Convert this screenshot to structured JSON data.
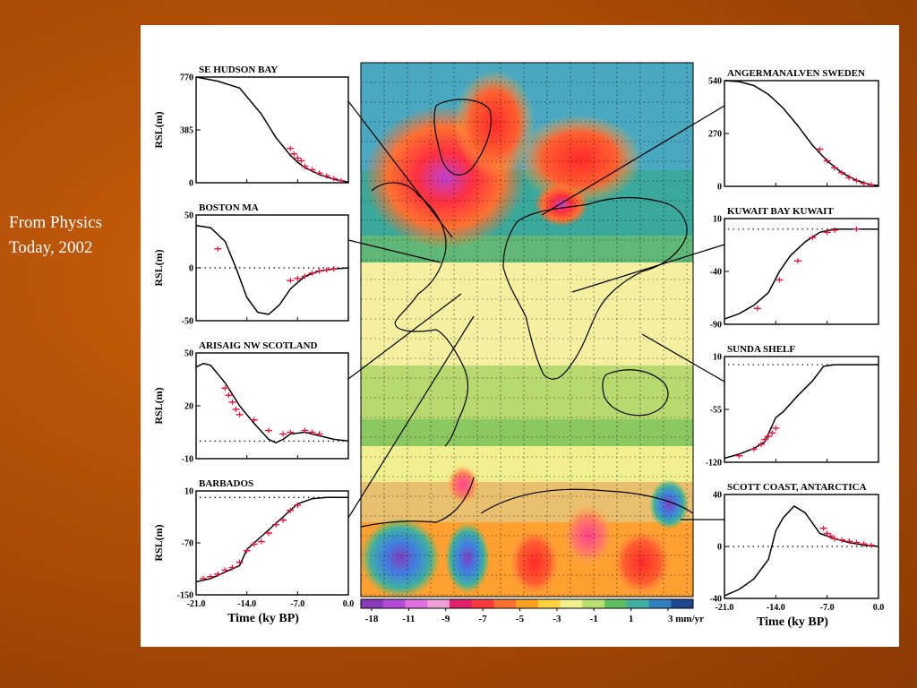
{
  "caption": {
    "line1": "From Physics",
    "line2": "Today, 2002"
  },
  "map": {
    "name": "global-rsl-rate-map"
  },
  "colorbar": {
    "labels": [
      "-18",
      "-11",
      "-9",
      "-7",
      "-5",
      "-3",
      "-1",
      "1",
      "3 mm/yr"
    ],
    "colors": [
      "#8a3ab8",
      "#b44ad8",
      "#e070e0",
      "#f0a0d8",
      "#e0206a",
      "#ff3a3a",
      "#ff7030",
      "#ffa020",
      "#ffd040",
      "#f0f090",
      "#b8e070",
      "#60c060",
      "#40b0a0",
      "#3080c0",
      "#204890"
    ]
  },
  "chart_data": [
    {
      "type": "line",
      "title": "SE HUDSON BAY",
      "ylabel": "RSL(m)",
      "xlim": [
        -21.0,
        0.0
      ],
      "ylim": [
        0,
        770
      ],
      "yticks": [
        "770",
        "385",
        "0"
      ],
      "xticks": [],
      "x": [
        -21,
        -18,
        -15,
        -12,
        -10,
        -8,
        -7,
        -6,
        -4,
        -2,
        0
      ],
      "y": [
        770,
        740,
        690,
        500,
        330,
        200,
        150,
        110,
        60,
        25,
        5
      ],
      "obs_x": [
        -8,
        -7.5,
        -7,
        -6.5,
        -6,
        -5,
        -4,
        -3,
        -2,
        -1
      ],
      "obs_y": [
        250,
        210,
        180,
        160,
        120,
        95,
        70,
        50,
        30,
        15
      ],
      "zero_line": false
    },
    {
      "type": "line",
      "title": "BOSTON MA",
      "ylabel": "RSL(m)",
      "xlim": [
        -21.0,
        0.0
      ],
      "ylim": [
        -50,
        50
      ],
      "yticks": [
        "50",
        "0",
        "-50"
      ],
      "xticks": [],
      "x": [
        -21,
        -19,
        -17,
        -15.5,
        -14,
        -12.5,
        -11,
        -9.5,
        -8,
        -6,
        -4,
        -2,
        0
      ],
      "y": [
        40,
        38,
        25,
        0,
        -28,
        -42,
        -44,
        -35,
        -20,
        -8,
        -3,
        -1,
        0
      ],
      "obs_x": [
        -18,
        -8,
        -7,
        -6,
        -5,
        -4,
        -3,
        -2
      ],
      "obs_y": [
        18,
        -12,
        -10,
        -8,
        -5,
        -3,
        -2,
        -1
      ],
      "zero_line": true
    },
    {
      "type": "line",
      "title": "ARISAIG NW SCOTLAND",
      "ylabel": "RSL(m)",
      "xlim": [
        -21.0,
        0.0
      ],
      "ylim": [
        -10,
        50
      ],
      "yticks": [
        "50",
        "20",
        "-10"
      ],
      "xticks": [],
      "x": [
        -21,
        -20,
        -19,
        -17,
        -15,
        -13,
        -11,
        -10,
        -9,
        -8,
        -6,
        -4,
        -2,
        0
      ],
      "y": [
        42,
        44,
        43,
        33,
        20,
        10,
        1,
        -1,
        1,
        4,
        5,
        3,
        1,
        0
      ],
      "obs_x": [
        -17,
        -16.5,
        -16,
        -15.5,
        -15,
        -13,
        -11,
        -9,
        -8,
        -6,
        -5,
        -4
      ],
      "obs_y": [
        30,
        26,
        22,
        18,
        15,
        12,
        6,
        4,
        5,
        6,
        5,
        4
      ],
      "zero_line": true
    },
    {
      "type": "line",
      "title": "BARBADOS",
      "ylabel": "RSL(m)",
      "xlim": [
        -21.0,
        0.0
      ],
      "ylim": [
        -150,
        10
      ],
      "yticks": [
        "10",
        "-70",
        "-150"
      ],
      "xticks": [
        "-21.0",
        "-14.0",
        "-7.0",
        "0.0"
      ],
      "xlabel": "Time (ky BP)",
      "x": [
        -21,
        -19,
        -17,
        -15,
        -14,
        -13,
        -11,
        -9,
        -7,
        -5,
        -3,
        0
      ],
      "y": [
        -130,
        -125,
        -115,
        -105,
        -80,
        -70,
        -50,
        -30,
        -10,
        -2,
        0,
        0
      ],
      "obs_x": [
        -20,
        -19,
        -18,
        -17,
        -16,
        -15,
        -14,
        -13,
        -12,
        -11,
        -10,
        -9,
        -8,
        -7
      ],
      "obs_y": [
        -125,
        -122,
        -118,
        -112,
        -108,
        -100,
        -82,
        -72,
        -68,
        -55,
        -42,
        -35,
        -20,
        -12
      ],
      "zero_line": true
    },
    {
      "type": "line",
      "title": "ANGERMANALVEN SWEDEN",
      "ylabel": "",
      "xlim": [
        -21.0,
        0.0
      ],
      "ylim": [
        0,
        540
      ],
      "yticks": [
        "540",
        "270",
        "0"
      ],
      "xticks": [],
      "x": [
        -21,
        -19,
        -17,
        -15,
        -13,
        -11,
        -9,
        -7,
        -5,
        -3,
        -1,
        0
      ],
      "y": [
        540,
        535,
        515,
        470,
        400,
        310,
        210,
        130,
        70,
        30,
        8,
        4
      ],
      "obs_x": [
        -8,
        -7,
        -6,
        -5,
        -4,
        -3,
        -2,
        -1
      ],
      "obs_y": [
        190,
        130,
        95,
        70,
        45,
        30,
        15,
        8
      ],
      "zero_line": false
    },
    {
      "type": "line",
      "title": "KUWAIT BAY KUWAIT",
      "ylabel": "",
      "xlim": [
        -21.0,
        0.0
      ],
      "ylim": [
        -90,
        10
      ],
      "yticks": [
        "10",
        "-40",
        "-90"
      ],
      "xticks": [],
      "x": [
        -21,
        -19,
        -17,
        -15,
        -13.5,
        -12,
        -10,
        -8,
        -6,
        -4,
        -2,
        0
      ],
      "y": [
        -85,
        -80,
        -72,
        -60,
        -40,
        -25,
        -12,
        -3,
        0,
        0,
        0,
        0
      ],
      "obs_x": [
        -16.5,
        -13.5,
        -11,
        -9,
        -7,
        -6,
        -3
      ],
      "obs_y": [
        -75,
        -48,
        -30,
        -8,
        -3,
        -1,
        0
      ],
      "zero_line": true
    },
    {
      "type": "line",
      "title": "SUNDA SHELF",
      "ylabel": "",
      "xlim": [
        -21.0,
        0.0
      ],
      "ylim": [
        -120,
        10
      ],
      "yticks": [
        "10",
        "-55",
        "-120"
      ],
      "xticks": [],
      "x": [
        -21,
        -19,
        -17,
        -15.5,
        -14,
        -13,
        -11,
        -9,
        -7.5,
        -6,
        -3,
        0
      ],
      "y": [
        -115,
        -110,
        -103,
        -95,
        -65,
        -58,
        -38,
        -20,
        -2,
        0,
        0,
        0
      ],
      "obs_x": [
        -19,
        -17,
        -16,
        -15.5,
        -15,
        -14.5,
        -14
      ],
      "obs_y": [
        -112,
        -104,
        -98,
        -92,
        -88,
        -84,
        -78
      ],
      "zero_line": true
    },
    {
      "type": "line",
      "title": "SCOTT COAST, ANTARCTICA",
      "ylabel": "",
      "xlim": [
        -21.0,
        0.0
      ],
      "ylim": [
        -40,
        40
      ],
      "yticks": [
        "40",
        "0",
        "-40"
      ],
      "xticks": [
        "-21.0",
        "-14.0",
        "-7.0",
        "0.0"
      ],
      "xlabel": "Time (ky BP)",
      "x": [
        -21,
        -19,
        -17,
        -15,
        -14,
        -13,
        -11.5,
        -10,
        -8,
        -6,
        -4,
        -2,
        0
      ],
      "y": [
        -38,
        -33,
        -25,
        -10,
        12,
        22,
        31,
        26,
        10,
        6,
        3,
        1,
        0
      ],
      "obs_x": [
        -7.5,
        -7,
        -6.5,
        -6,
        -5,
        -4,
        -3,
        -2,
        -1
      ],
      "obs_y": [
        14,
        10,
        8,
        6,
        5,
        4,
        3,
        2,
        1
      ],
      "zero_line": true
    }
  ]
}
